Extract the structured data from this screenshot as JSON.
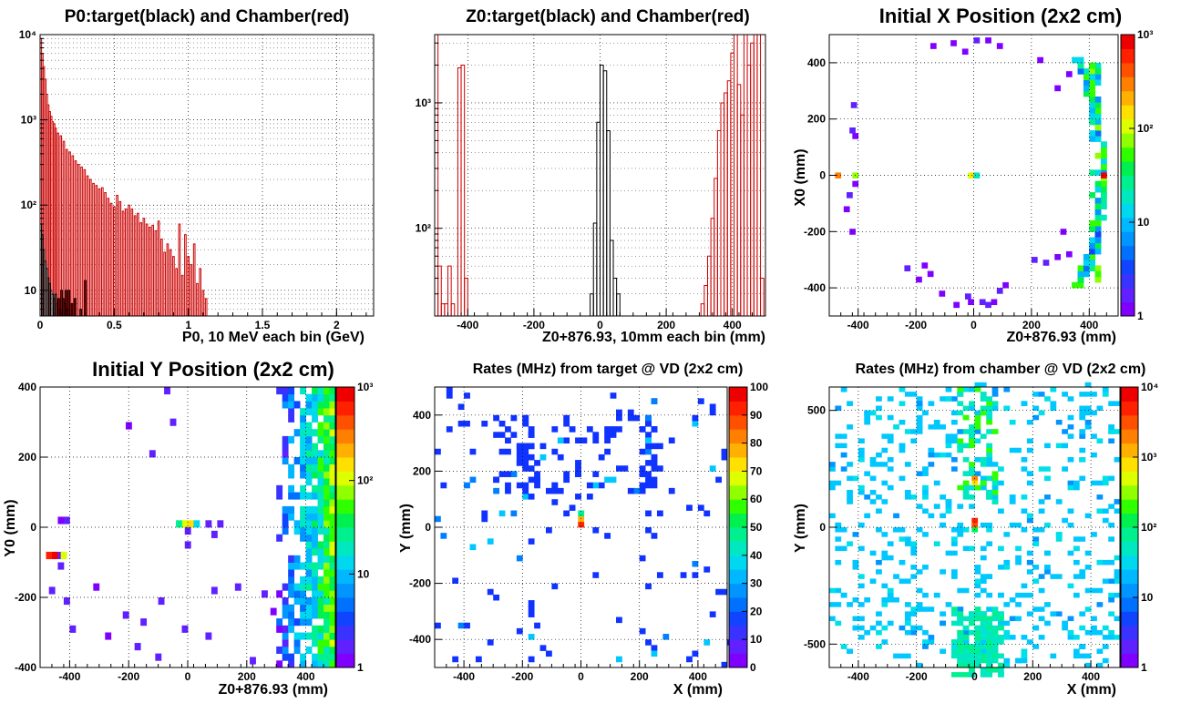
{
  "chart_data": [
    {
      "type": "histogram",
      "title": "P0:target(black) and Chamber(red)",
      "xlabel": "P0, 10 MeV each bin (GeV)",
      "ylabel": "",
      "xlim": [
        0,
        2.25
      ],
      "ylim": [
        5,
        10000
      ],
      "yscale": "log",
      "grid": true,
      "x_ticks": [
        0,
        0.5,
        1,
        1.5,
        2
      ],
      "x_tick_labels": [
        "0",
        "0.5",
        "1",
        "1.5",
        "2"
      ],
      "y_ticks": [
        10,
        100,
        1000,
        10000
      ],
      "y_tick_labels": [
        "10",
        "10²",
        "10³",
        "10⁴"
      ],
      "series": [
        {
          "color": "#cc0000",
          "x": [
            0.005,
            0.015,
            0.025,
            0.035,
            0.045,
            0.055,
            0.065,
            0.075,
            0.085,
            0.095,
            0.105,
            0.12,
            0.14,
            0.16,
            0.18,
            0.2,
            0.22,
            0.24,
            0.26,
            0.28,
            0.3,
            0.32,
            0.34,
            0.36,
            0.38,
            0.4,
            0.42,
            0.44,
            0.46,
            0.48,
            0.5,
            0.52,
            0.54,
            0.56,
            0.58,
            0.6,
            0.62,
            0.64,
            0.66,
            0.68,
            0.7,
            0.72,
            0.74,
            0.76,
            0.78,
            0.8,
            0.82,
            0.84,
            0.86,
            0.88,
            0.9,
            0.92,
            0.94,
            0.96,
            0.98,
            1.0,
            1.02,
            1.04,
            1.06,
            1.08,
            1.1,
            1.12
          ],
          "y": [
            9000,
            6000,
            4200,
            3000,
            2000,
            1500,
            1250,
            1100,
            950,
            900,
            800,
            700,
            650,
            560,
            450,
            420,
            380,
            330,
            300,
            280,
            260,
            220,
            200,
            180,
            170,
            155,
            160,
            140,
            120,
            105,
            95,
            130,
            110,
            85,
            90,
            100,
            90,
            75,
            80,
            62,
            70,
            60,
            55,
            58,
            50,
            65,
            40,
            28,
            35,
            30,
            25,
            18,
            60,
            15,
            45,
            25,
            20,
            35,
            12,
            18,
            10,
            8
          ]
        },
        {
          "color": "#000000",
          "x": [
            0.005,
            0.015,
            0.025,
            0.035,
            0.045,
            0.055,
            0.065,
            0.075,
            0.085,
            0.095,
            0.105,
            0.115,
            0.125,
            0.135,
            0.145,
            0.155,
            0.165,
            0.175,
            0.185,
            0.195,
            0.215,
            0.235,
            0.275,
            0.305
          ],
          "y": [
            60,
            45,
            30,
            22,
            18,
            14,
            12,
            10,
            9,
            8,
            9,
            7,
            8,
            6,
            10,
            8,
            7,
            10,
            6,
            10,
            7,
            8,
            6,
            13
          ]
        }
      ]
    },
    {
      "type": "histogram",
      "title": "Z0:target(black) and Chamber(red)",
      "xlabel": "Z0+876.93, 10mm each bin (mm)",
      "ylabel": "",
      "xlim": [
        -500,
        500
      ],
      "ylim": [
        20,
        3500
      ],
      "yscale": "log",
      "grid": true,
      "x_ticks": [
        -400,
        -200,
        0,
        200,
        400
      ],
      "x_tick_labels": [
        "-400",
        "-200",
        "0",
        "200",
        "400"
      ],
      "y_ticks": [
        100,
        1000
      ],
      "y_tick_labels": [
        "10²",
        "10³"
      ],
      "series": [
        {
          "color": "#cc0000",
          "x": [
            -495,
            -485,
            -475,
            -465,
            -455,
            -445,
            -435,
            -425,
            -415,
            -405,
            -395,
            300,
            310,
            320,
            330,
            340,
            350,
            360,
            370,
            380,
            390,
            400,
            410,
            420,
            430,
            440,
            450,
            460,
            470,
            480,
            490
          ],
          "y": [
            3500,
            50,
            25,
            25,
            50,
            25,
            20,
            1900,
            2000,
            40,
            20,
            20,
            25,
            35,
            60,
            120,
            250,
            600,
            1000,
            1200,
            1500,
            2500,
            3500,
            1400,
            800,
            3500,
            2000,
            3000,
            3500,
            3500,
            40
          ]
        },
        {
          "color": "#000000",
          "x": [
            -25,
            -15,
            -5,
            5,
            15,
            25,
            35,
            45,
            55
          ],
          "y": [
            30,
            110,
            700,
            2000,
            1800,
            600,
            80,
            40,
            30
          ]
        }
      ]
    },
    {
      "type": "heatmap",
      "title": "Initial X Position (2x2 cm)",
      "xlabel": "Z0+876.93 (mm)",
      "ylabel": "X0 (mm)",
      "xlim": [
        -500,
        500
      ],
      "ylim": [
        -500,
        500
      ],
      "x_ticks": [
        -400,
        -200,
        0,
        200,
        400
      ],
      "y_ticks": [
        -400,
        -200,
        0,
        200,
        400
      ],
      "zscale": "log",
      "zlim": [
        1,
        1000
      ],
      "z_tick_labels": [
        "1",
        "10",
        "10²",
        "10³"
      ],
      "grid": true
    },
    {
      "type": "heatmap",
      "title": "Initial Y Position (2x2 cm)",
      "xlabel": "Z0+876.93 (mm)",
      "ylabel": "Y0 (mm)",
      "xlim": [
        -500,
        500
      ],
      "ylim": [
        -400,
        400
      ],
      "x_ticks": [
        -400,
        -200,
        0,
        200,
        400
      ],
      "y_ticks": [
        -400,
        -200,
        0,
        200,
        400
      ],
      "zscale": "log",
      "zlim": [
        1,
        1000
      ],
      "z_tick_labels": [
        "1",
        "10",
        "10²",
        "10³"
      ],
      "grid": true
    },
    {
      "type": "heatmap",
      "title": "Rates (MHz) from target @ VD (2x2 cm)",
      "xlabel": "X (mm)",
      "ylabel": "Y (mm)",
      "xlim": [
        -500,
        500
      ],
      "ylim": [
        -500,
        500
      ],
      "x_ticks": [
        -400,
        -200,
        0,
        200,
        400
      ],
      "y_ticks": [
        -400,
        -200,
        0,
        200,
        400
      ],
      "zscale": "linear",
      "zlim": [
        0,
        100
      ],
      "z_tick_labels": [
        "0",
        "10",
        "20",
        "30",
        "40",
        "50",
        "60",
        "70",
        "80",
        "90",
        "100"
      ],
      "grid": true
    },
    {
      "type": "heatmap",
      "title": "Rates (MHz) from chamber @ VD (2x2 cm)",
      "xlabel": "X (mm)",
      "ylabel": "Y (mm)",
      "xlim": [
        -500,
        500
      ],
      "ylim": [
        -600,
        600
      ],
      "x_ticks": [
        -400,
        -200,
        0,
        200,
        400
      ],
      "y_ticks": [
        -500,
        0,
        500
      ],
      "zscale": "log",
      "zlim": [
        1,
        10000
      ],
      "z_tick_labels": [
        "1",
        "10",
        "10²",
        "10³",
        "10⁴"
      ],
      "grid": true
    }
  ]
}
